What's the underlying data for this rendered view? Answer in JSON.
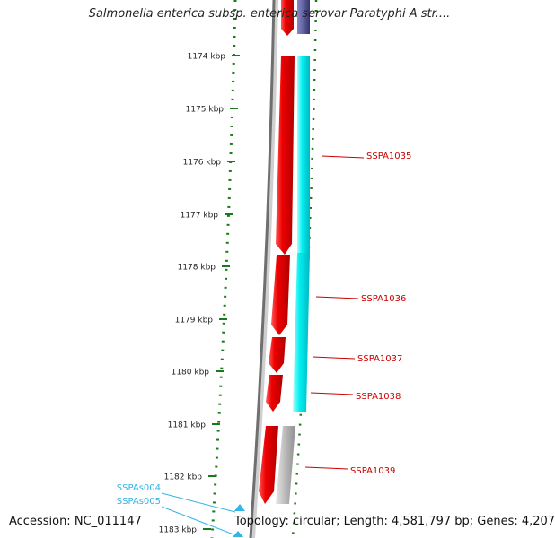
{
  "title": "Salmonella enterica subsp. enterica serovar Paratyphi A str....",
  "accession": "Accession: NC_011147",
  "topology": "Topology: circular; Length: 4,581,797 bp; Genes: 4,207",
  "colors": {
    "forward_cds": "#e00000",
    "reverse_cds": "#00e8ea",
    "pseudo_feature": "#b8b8b8",
    "dark_feature": "#4a4a8a",
    "backbone": "#777777",
    "tick": "#1a7a1a",
    "gene_label": "#cc0000",
    "srna_label": "#33b5e5"
  },
  "scale": {
    "ticks": [
      {
        "label": "1174 kbp"
      },
      {
        "label": "1175 kbp"
      },
      {
        "label": "1176 kbp"
      },
      {
        "label": "1177 kbp"
      },
      {
        "label": "1178 kbp"
      },
      {
        "label": "1179 kbp"
      },
      {
        "label": "1180 kbp"
      },
      {
        "label": "1181 kbp"
      },
      {
        "label": "1182 kbp"
      },
      {
        "label": "1183 kbp"
      }
    ]
  },
  "gene_labels": [
    "SSPA1035",
    "SSPA1036",
    "SSPA1037",
    "SSPA1038",
    "SSPA1039"
  ],
  "srna_labels": [
    "SSPAs004",
    "SSPAs005"
  ]
}
